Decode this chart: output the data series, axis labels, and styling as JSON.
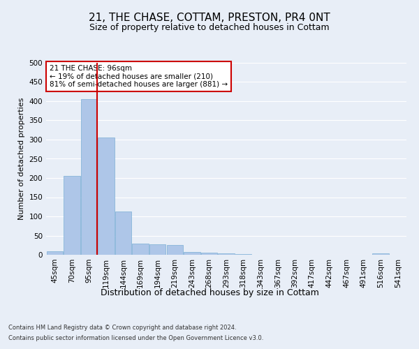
{
  "title": "21, THE CHASE, COTTAM, PRESTON, PR4 0NT",
  "subtitle": "Size of property relative to detached houses in Cottam",
  "xlabel": "Distribution of detached houses by size in Cottam",
  "ylabel": "Number of detached properties",
  "categories": [
    "45sqm",
    "70sqm",
    "95sqm",
    "119sqm",
    "144sqm",
    "169sqm",
    "194sqm",
    "219sqm",
    "243sqm",
    "268sqm",
    "293sqm",
    "318sqm",
    "343sqm",
    "367sqm",
    "392sqm",
    "417sqm",
    "442sqm",
    "467sqm",
    "491sqm",
    "516sqm",
    "541sqm"
  ],
  "values": [
    10,
    205,
    405,
    305,
    112,
    30,
    27,
    26,
    8,
    6,
    3,
    1,
    0,
    0,
    0,
    0,
    0,
    0,
    0,
    4,
    0
  ],
  "bar_color": "#aec6e8",
  "bar_edge_color": "#7aafd4",
  "vline_color": "#cc0000",
  "annotation_text": "21 THE CHASE: 96sqm\n← 19% of detached houses are smaller (210)\n81% of semi-detached houses are larger (881) →",
  "annotation_box_color": "#ffffff",
  "annotation_box_edge": "#cc0000",
  "ylim": [
    0,
    500
  ],
  "yticks": [
    0,
    50,
    100,
    150,
    200,
    250,
    300,
    350,
    400,
    450,
    500
  ],
  "bg_color": "#e8eef7",
  "plot_bg_color": "#e8eef7",
  "footer_line1": "Contains HM Land Registry data © Crown copyright and database right 2024.",
  "footer_line2": "Contains public sector information licensed under the Open Government Licence v3.0.",
  "title_fontsize": 11,
  "subtitle_fontsize": 9,
  "tick_fontsize": 7.5,
  "ylabel_fontsize": 8,
  "xlabel_fontsize": 9,
  "footer_fontsize": 6,
  "annotation_fontsize": 7.5
}
